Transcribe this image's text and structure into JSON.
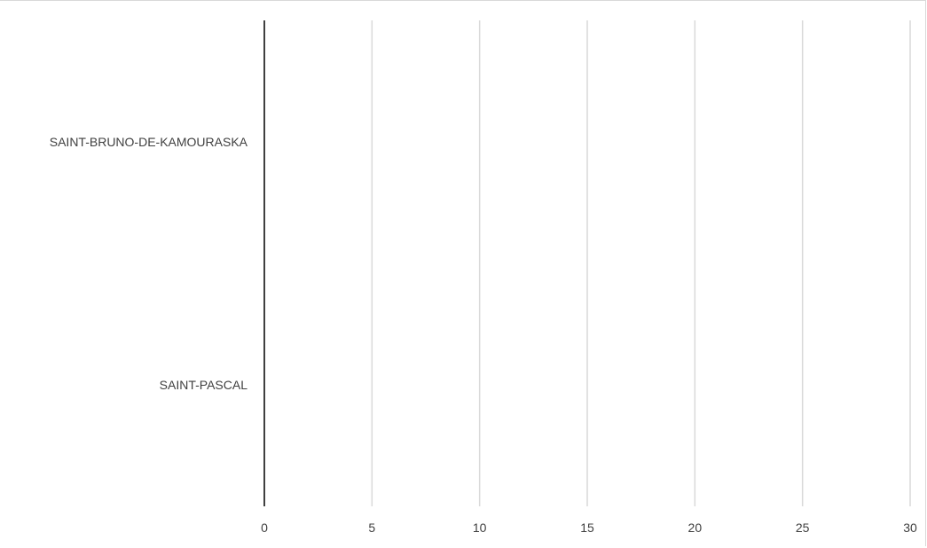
{
  "chart_data": {
    "type": "bar",
    "orientation": "horizontal",
    "categories": [
      "SAINT-PASCAL",
      "SAINT-BRUNO-DE-KAMOURASKA"
    ],
    "values": [
      0,
      0
    ],
    "xlim": [
      0,
      30
    ],
    "xticks": [
      "0",
      "5",
      "10",
      "15",
      "20",
      "25",
      "30"
    ],
    "grid": true,
    "legend": "none",
    "colors": {
      "axis": "#404040",
      "gridline": "#d9d9d9",
      "text": "#404040"
    }
  }
}
